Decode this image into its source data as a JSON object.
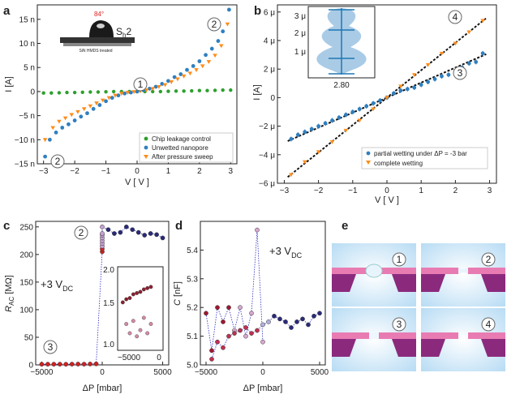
{
  "colors": {
    "green": "#2ca02c",
    "blue": "#2f7fc1",
    "orange": "#ff8c1a",
    "red": "#d32020",
    "navy": "#2a2a7a",
    "pink": "#e87cb2",
    "purple": "#8b2a7d",
    "water": "#cfe8f8"
  },
  "panels": {
    "a": {
      "letter": "a",
      "xlabel": "V [ V ]",
      "ylabel": "I [A]",
      "xticks": [
        "−3",
        "−2",
        "−1",
        "0",
        "1",
        "2",
        "3"
      ],
      "yticks": [
        "15 n",
        "10 n",
        "5 n",
        "0",
        "−5 n",
        "−10 n",
        "−15 n"
      ],
      "inset": {
        "angle": "84°",
        "label": "Sh2",
        "label_base": "S",
        "label_sub": "h",
        "label_suffix": "2",
        "caption": "SiN HMDS treated"
      },
      "markers": [
        "1",
        "2",
        "2"
      ],
      "legend": [
        "Chip leakage control",
        "Unwetted nanopore",
        "After pressure sweep"
      ]
    },
    "b": {
      "letter": "b",
      "xlabel": "V [ V ]",
      "ylabel": "I [A]",
      "xticks": [
        "−3",
        "−2",
        "−1",
        "0",
        "1",
        "2",
        "3"
      ],
      "yticks": [
        "6 μ",
        "4 μ",
        "2 μ",
        "0",
        "−2 μ",
        "−4 μ",
        "−6 μ"
      ],
      "inset": {
        "yticks": [
          "3 μ",
          "2 μ",
          "1 μ"
        ],
        "xlabel": "2.80"
      },
      "markers": [
        "4",
        "3"
      ],
      "legend": [
        "partial wetting under ΔP = -3 bar",
        "complete wetting"
      ]
    },
    "c": {
      "letter": "c",
      "xlabel": "ΔP [mbar]",
      "ylabel_base": "R",
      "ylabel_sub": "AC",
      "ylabel_unit": " [MΩ]",
      "xticks": [
        "−5000",
        "0",
        "5000"
      ],
      "yticks": [
        "250",
        "200",
        "150",
        "100",
        "50",
        "0"
      ],
      "annotation": {
        "base": "+3 V",
        "sub": "DC"
      },
      "inset": {
        "yticks": [
          "2.0",
          "1.5",
          "1.0"
        ],
        "xticks": [
          "−5000",
          "0"
        ]
      },
      "markers": [
        "2",
        "3"
      ]
    },
    "d": {
      "letter": "d",
      "xlabel": "ΔP [mbar]",
      "ylabel_base": "C",
      "ylabel_unit": " [nF]",
      "xticks": [
        "−5000",
        "0",
        "5000"
      ],
      "yticks": [
        "5.4",
        "5.3",
        "5.2",
        "5.1",
        "5.0"
      ],
      "annotation": {
        "base": "+3 V",
        "sub": "DC"
      }
    },
    "e": {
      "letter": "e",
      "labels": [
        "1",
        "2",
        "3",
        "4"
      ]
    }
  },
  "chart_data": [
    {
      "panel": "a",
      "type": "scatter",
      "xlabel": "V [ V ]",
      "ylabel": "I [A]",
      "xlim": [
        -3.2,
        3.2
      ],
      "ylim": [
        -15,
        18
      ],
      "y_unit": "n",
      "series": [
        {
          "name": "Chip leakage control",
          "x": [
            -3,
            -2.75,
            -2.5,
            -2.25,
            -2,
            -1.75,
            -1.5,
            -1.25,
            -1,
            -0.75,
            -0.5,
            -0.25,
            0,
            0.25,
            0.5,
            0.75,
            1,
            1.25,
            1.5,
            1.75,
            2,
            2.25,
            2.5,
            2.75,
            3
          ],
          "y": [
            -0.3,
            -0.3,
            -0.25,
            -0.2,
            -0.2,
            -0.15,
            -0.1,
            -0.1,
            -0.05,
            0,
            0,
            0,
            0,
            0,
            0,
            0,
            0.05,
            0.1,
            0.1,
            0.15,
            0.2,
            0.2,
            0.25,
            0.3,
            0.3
          ]
        },
        {
          "name": "Unwetted nanopore",
          "x": [
            -2.95,
            -2.8,
            -2.6,
            -2.4,
            -2.2,
            -2,
            -1.8,
            -1.6,
            -1.4,
            -1.2,
            -1,
            -0.8,
            -0.6,
            -0.4,
            -0.2,
            0,
            0.2,
            0.4,
            0.6,
            0.8,
            1,
            1.2,
            1.4,
            1.6,
            1.8,
            2,
            2.2,
            2.4,
            2.6,
            2.75,
            2.95
          ],
          "y": [
            -13.5,
            -10,
            -8.5,
            -7.5,
            -6.8,
            -6,
            -5.2,
            -4.5,
            -3.6,
            -2.8,
            -2,
            -1.3,
            -0.8,
            -0.4,
            -0.2,
            0,
            0.3,
            0.6,
            1,
            1.6,
            2.2,
            3,
            3.6,
            4.5,
            5.3,
            6.3,
            7.6,
            8.9,
            10.5,
            12.5,
            17
          ]
        },
        {
          "name": "After pressure sweep",
          "x": [
            -2.95,
            -2.7,
            -2.5,
            -2.3,
            -2.1,
            -1.9,
            -1.7,
            -1.5,
            -1.3,
            -1.1,
            -0.9,
            -0.7,
            -0.5,
            -0.3,
            -0.1,
            0.1,
            0.3,
            0.5,
            0.7,
            0.9,
            1.1,
            1.3,
            1.5,
            1.7,
            1.9,
            2.1,
            2.3,
            2.5,
            2.7,
            2.9
          ],
          "y": [
            -10,
            -7.5,
            -6.2,
            -5.5,
            -4.8,
            -4.2,
            -3.6,
            -3,
            -2.4,
            -1.8,
            -1.3,
            -0.8,
            -0.4,
            -0.2,
            -0.05,
            0.1,
            0.3,
            0.6,
            1,
            1.4,
            2,
            2.6,
            3.2,
            3.8,
            4.5,
            5.3,
            6.2,
            7.5,
            9.5,
            14
          ]
        }
      ]
    },
    {
      "panel": "b",
      "type": "scatter",
      "xlabel": "V [ V ]",
      "ylabel": "I [A]",
      "xlim": [
        -3.2,
        3.2
      ],
      "ylim": [
        -6,
        6.5
      ],
      "y_unit": "μ",
      "series": [
        {
          "name": "partial wetting under ΔP = -3 bar",
          "x": [
            -2.8,
            -2.6,
            -2.4,
            -2.2,
            -2,
            -1.8,
            -1.6,
            -1.4,
            -1.2,
            -1,
            -0.8,
            -0.6,
            -0.4,
            -0.2,
            0,
            0.2,
            0.4,
            0.6,
            0.8,
            1,
            1.2,
            1.4,
            1.6,
            1.8,
            2,
            2.2,
            2.4,
            2.6,
            2.8
          ],
          "y": [
            -2.9,
            -2.6,
            -2.4,
            -2.2,
            -2,
            -1.8,
            -1.6,
            -1.4,
            -1.2,
            -1,
            -0.8,
            -0.6,
            -0.4,
            -0.2,
            0,
            0.3,
            0.5,
            0.6,
            0.7,
            0.9,
            1.1,
            1.3,
            1.5,
            1.6,
            1.8,
            2.1,
            2.4,
            2.5,
            3.1
          ]
        },
        {
          "name": "complete wetting",
          "x": [
            -2.8,
            -2.4,
            -2,
            -1.6,
            -1.2,
            -0.8,
            -0.4,
            0,
            0.4,
            0.8,
            1.2,
            1.6,
            2,
            2.4,
            2.8
          ],
          "y": [
            -5.4,
            -4.5,
            -3.8,
            -3.1,
            -2.3,
            -1.6,
            -0.8,
            0,
            0.8,
            1.6,
            2.3,
            3.1,
            3.8,
            4.6,
            5.4
          ]
        }
      ],
      "fits": [
        {
          "slope": 1.92,
          "intercept": 0
        },
        {
          "slope": 1.05,
          "intercept": 0
        }
      ]
    },
    {
      "panel": "c",
      "type": "scatter",
      "xlabel": "ΔP [mbar]",
      "ylabel": "R_AC [MΩ]",
      "xlim": [
        -5500,
        5500
      ],
      "ylim": [
        0,
        260
      ],
      "series": [
        {
          "name": "sweep",
          "x": [
            -5000,
            -4500,
            -4000,
            -3500,
            -3000,
            -2500,
            -2000,
            -1500,
            -1000,
            -500,
            0,
            0,
            0,
            0,
            0,
            0,
            0,
            0,
            0,
            500,
            1000,
            1500,
            2000,
            2500,
            3000,
            3500,
            4000,
            4500,
            5000
          ],
          "y": [
            1.2,
            1.3,
            1.3,
            1.3,
            1.2,
            1.4,
            1.5,
            1.4,
            1.6,
            1.8,
            205,
            210,
            215,
            220,
            225,
            230,
            235,
            238,
            250,
            245,
            238,
            240,
            250,
            245,
            240,
            235,
            238,
            236,
            230
          ]
        }
      ]
    },
    {
      "panel": "d",
      "type": "scatter",
      "xlabel": "ΔP [mbar]",
      "ylabel": "C [nF]",
      "xlim": [
        -5500,
        5500
      ],
      "ylim": [
        5.0,
        5.5
      ],
      "series": [
        {
          "name": "forward",
          "x": [
            -5000,
            -4500,
            -4000,
            -3500,
            -3000,
            -2500,
            -2000,
            -1500,
            -1000,
            -500,
            0
          ],
          "y": [
            5.18,
            5.05,
            5.2,
            5.15,
            5.2,
            5.12,
            5.2,
            5.1,
            5.18,
            5.47,
            5.08
          ]
        },
        {
          "name": "return",
          "x": [
            -4500,
            -4000,
            -3500,
            -3000,
            -2500,
            -2000,
            -1500,
            -1000,
            -500,
            0,
            500,
            1000,
            1500,
            2000,
            2500,
            3000,
            3500,
            4000,
            4500,
            5000
          ],
          "y": [
            5.02,
            5.08,
            5.06,
            5.1,
            5.11,
            5.12,
            5.13,
            5.11,
            5.12,
            5.14,
            5.15,
            5.17,
            5.16,
            5.15,
            5.13,
            5.15,
            5.16,
            5.14,
            5.17,
            5.18
          ]
        }
      ]
    }
  ]
}
